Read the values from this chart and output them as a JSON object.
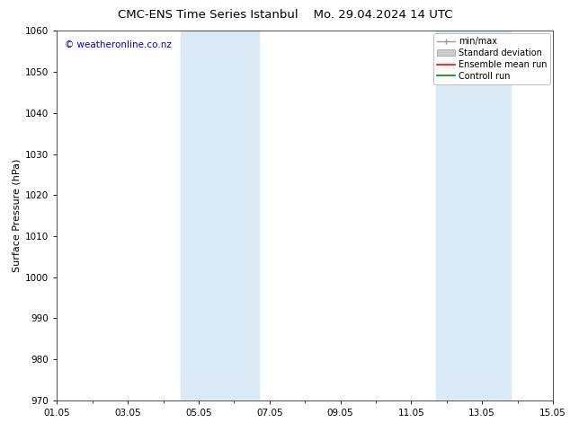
{
  "title_left": "CMC-ENS Time Series Istanbul",
  "title_right": "Mo. 29.04.2024 14 UTC",
  "ylabel": "Surface Pressure (hPa)",
  "ylim": [
    970,
    1060
  ],
  "yticks": [
    970,
    980,
    990,
    1000,
    1010,
    1020,
    1030,
    1040,
    1050,
    1060
  ],
  "xlim": [
    0,
    14
  ],
  "xtick_labels": [
    "01.05",
    "03.05",
    "05.05",
    "07.05",
    "09.05",
    "11.05",
    "13.05",
    "15.05"
  ],
  "xtick_positions_days": [
    0,
    2,
    4,
    6,
    8,
    10,
    12,
    14
  ],
  "shaded_bands": [
    {
      "start_day": 3.5,
      "end_day": 5.7,
      "color": "#daeaf7"
    },
    {
      "start_day": 10.7,
      "end_day": 12.8,
      "color": "#daeaf7"
    }
  ],
  "watermark_text": "© weatheronline.co.nz",
  "watermark_color": "#0000cc",
  "legend_items": [
    {
      "label": "min/max",
      "type": "minmax"
    },
    {
      "label": "Standard deviation",
      "type": "fill"
    },
    {
      "label": "Ensemble mean run",
      "type": "line",
      "color": "#ff0000"
    },
    {
      "label": "Controll run",
      "type": "line",
      "color": "#008800"
    }
  ],
  "bg_color": "#ffffff",
  "title_fontsize": 9.5,
  "ylabel_fontsize": 8,
  "tick_fontsize": 7.5,
  "legend_fontsize": 7,
  "watermark_fontsize": 7.5
}
